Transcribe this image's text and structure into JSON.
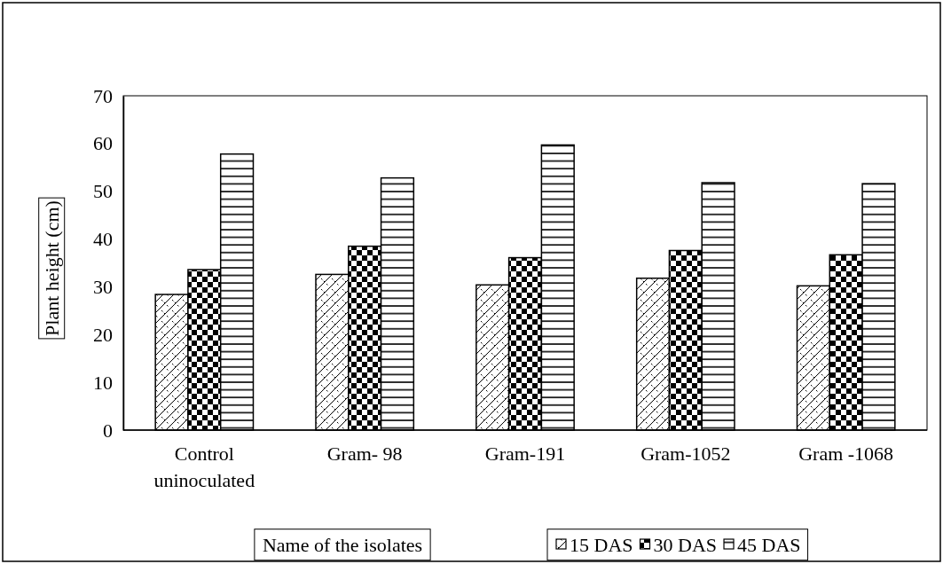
{
  "chart_data": {
    "type": "bar",
    "ylabel": "Plant height (cm)",
    "xlabel": "Name of the isolates",
    "categories": [
      "Control uninoculated",
      "Gram- 98",
      "Gram-191",
      "Gram-1052",
      "Gram -1068"
    ],
    "series": [
      {
        "name": "15 DAS",
        "color": "#000000",
        "values": [
          28.4,
          32.6,
          30.4,
          31.8,
          30.2
        ]
      },
      {
        "name": "30 DAS",
        "color": "#000000",
        "values": [
          33.6,
          38.5,
          36.1,
          37.6,
          36.7
        ]
      },
      {
        "name": "45 DAS",
        "color": "#000000",
        "values": [
          57.8,
          52.8,
          59.7,
          51.8,
          51.6
        ]
      }
    ],
    "ylim": [
      0,
      70
    ],
    "yticks": [
      0,
      10,
      20,
      30,
      40,
      50,
      60,
      70
    ],
    "grid": false,
    "legend": "bottom"
  }
}
